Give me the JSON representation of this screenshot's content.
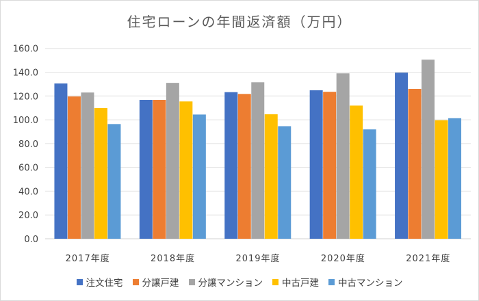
{
  "chart_data": {
    "type": "bar",
    "title": "住宅ローンの年間返済額（万円）",
    "categories": [
      "2017年度",
      "2018年度",
      "2019年度",
      "2020年度",
      "2021年度"
    ],
    "ylim": [
      0,
      160
    ],
    "yticks": [
      "0.0",
      "20.0",
      "40.0",
      "60.0",
      "80.0",
      "100.0",
      "120.0",
      "140.0",
      "160.0"
    ],
    "grid": true,
    "legend": "bottom",
    "series": [
      {
        "name": "注文住宅",
        "color": "#4472c4",
        "values": [
          130.5,
          116.7,
          123.2,
          124.8,
          139.6
        ]
      },
      {
        "name": "分譲戸建",
        "color": "#ed7d31",
        "values": [
          119.6,
          116.7,
          121.7,
          123.5,
          125.9
        ]
      },
      {
        "name": "分譲マンション",
        "color": "#a5a5a5",
        "values": [
          122.9,
          131.0,
          131.5,
          139.0,
          150.5
        ]
      },
      {
        "name": "中古戸建",
        "color": "#ffc000",
        "values": [
          109.8,
          115.4,
          104.6,
          111.9,
          99.6
        ]
      },
      {
        "name": "中古マンション",
        "color": "#5b9bd5",
        "values": [
          96.4,
          104.4,
          94.6,
          91.9,
          101.3
        ]
      }
    ]
  }
}
